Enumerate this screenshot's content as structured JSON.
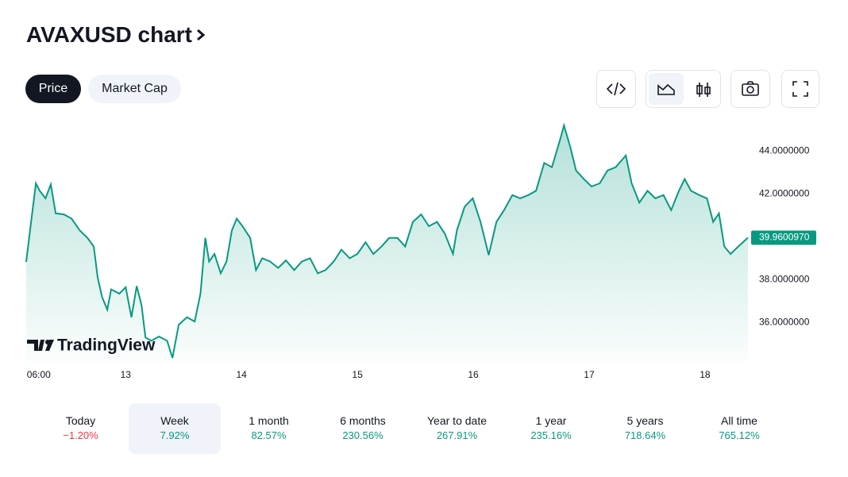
{
  "header": {
    "title": "AVAXUSD chart"
  },
  "tabs": [
    "Price",
    "Market Cap"
  ],
  "watermark": "TradingView",
  "chart_data": {
    "type": "line",
    "x": [
      3.4,
      4.3,
      5.4,
      6.2,
      7.4,
      8.5,
      9.5,
      11.2,
      12.8,
      14.5,
      16.1,
      17.4,
      18.2,
      19.1,
      20.2,
      21.0,
      22.7,
      24,
      25.2,
      26.3,
      27.3,
      28.1,
      29.3,
      30.9,
      32.6,
      33.7,
      35.0,
      36.7,
      38.3,
      39.5,
      40.5,
      41.3,
      42.4,
      43.7,
      44.9,
      46.0,
      47.0,
      48.2,
      49.8,
      51.0,
      52.3,
      53.9,
      55.6,
      57.2,
      58.9,
      60.5,
      62.2,
      63.8,
      65.4,
      67.1,
      68.7,
      70.4,
      72.0,
      73.7,
      75.3,
      77.0,
      78.6,
      80.3,
      81.9,
      83.5,
      85.2,
      86.8,
      88.5,
      90.1,
      91.8,
      92.6,
      94.2,
      95.9,
      97.5,
      99.2,
      100.8,
      102.4,
      104.1,
      105.7,
      107.4,
      109.0,
      110.7,
      112.3,
      114.0,
      114.8,
      116.1,
      117.3,
      118.9,
      120.5,
      122.2,
      123.8,
      125.5,
      127.6,
      128.8,
      130.4,
      132.1,
      133.7,
      135.4,
      137.0,
      138.6,
      139.8,
      141.1,
      142.8,
      144.4,
      145.7,
      146.9,
      148.0,
      149.3,
      150.9,
      152.9
    ],
    "series": [
      {
        "name": "AVAXUSD",
        "color": "#089981",
        "values": [
          38.83,
          40.5,
          42.5,
          42.15,
          41.8,
          42.45,
          41.1,
          41.05,
          40.85,
          40.3,
          39.95,
          39.55,
          38.1,
          37.2,
          36.6,
          37.55,
          37.35,
          37.65,
          36.25,
          37.7,
          36.8,
          35.3,
          35.15,
          35.35,
          35.15,
          34.35,
          35.9,
          36.25,
          36.05,
          37.35,
          39.95,
          38.85,
          39.2,
          38.3,
          38.85,
          40.3,
          40.85,
          40.5,
          39.95,
          38.45,
          39.0,
          38.85,
          38.55,
          38.9,
          38.45,
          38.85,
          39.0,
          38.3,
          38.45,
          38.85,
          39.4,
          39.0,
          39.2,
          39.75,
          39.2,
          39.55,
          39.95,
          39.95,
          39.55,
          40.7,
          41.05,
          40.5,
          40.7,
          40.15,
          39.2,
          40.3,
          41.4,
          41.8,
          40.7,
          39.15,
          40.7,
          41.25,
          41.95,
          41.8,
          41.95,
          42.15,
          43.45,
          43.25,
          44.55,
          45.2,
          44.2,
          43.1,
          42.7,
          42.35,
          42.5,
          43.1,
          43.25,
          43.8,
          42.5,
          41.6,
          42.15,
          41.8,
          41.95,
          41.25,
          42.15,
          42.7,
          42.15,
          41.95,
          41.8,
          40.7,
          41.1,
          39.55,
          39.2,
          39.55,
          39.96
        ]
      }
    ],
    "xlim": [
      3.4,
      152.9
    ],
    "xticks": [
      {
        "value": 6,
        "label": "06:00"
      },
      {
        "value": 24,
        "label": "13"
      },
      {
        "value": 48,
        "label": "14"
      },
      {
        "value": 72,
        "label": "15"
      },
      {
        "value": 96,
        "label": "16"
      },
      {
        "value": 120,
        "label": "17"
      },
      {
        "value": 144,
        "label": "18"
      }
    ],
    "ylim": [
      34.2,
      45.5
    ],
    "yticks": [
      {
        "value": 36,
        "label": "36.0000000"
      },
      {
        "value": 38,
        "label": "38.0000000"
      },
      {
        "value": 42,
        "label": "42.0000000"
      },
      {
        "value": 44,
        "label": "44.0000000"
      }
    ],
    "price_label": {
      "value": 39.960097,
      "label": "39.9600970"
    }
  },
  "periods": [
    {
      "label": "Today",
      "change": "−1.20%",
      "color": "#f23645"
    },
    {
      "label": "Week",
      "change": "7.92%",
      "color": "#089981"
    },
    {
      "label": "1 month",
      "change": "82.57%",
      "color": "#089981"
    },
    {
      "label": "6 months",
      "change": "230.56%",
      "color": "#089981"
    },
    {
      "label": "Year to date",
      "change": "267.91%",
      "color": "#089981"
    },
    {
      "label": "1 year",
      "change": "235.16%",
      "color": "#089981"
    },
    {
      "label": "5 years",
      "change": "718.64%",
      "color": "#089981"
    },
    {
      "label": "All time",
      "change": "765.12%",
      "color": "#089981"
    }
  ]
}
